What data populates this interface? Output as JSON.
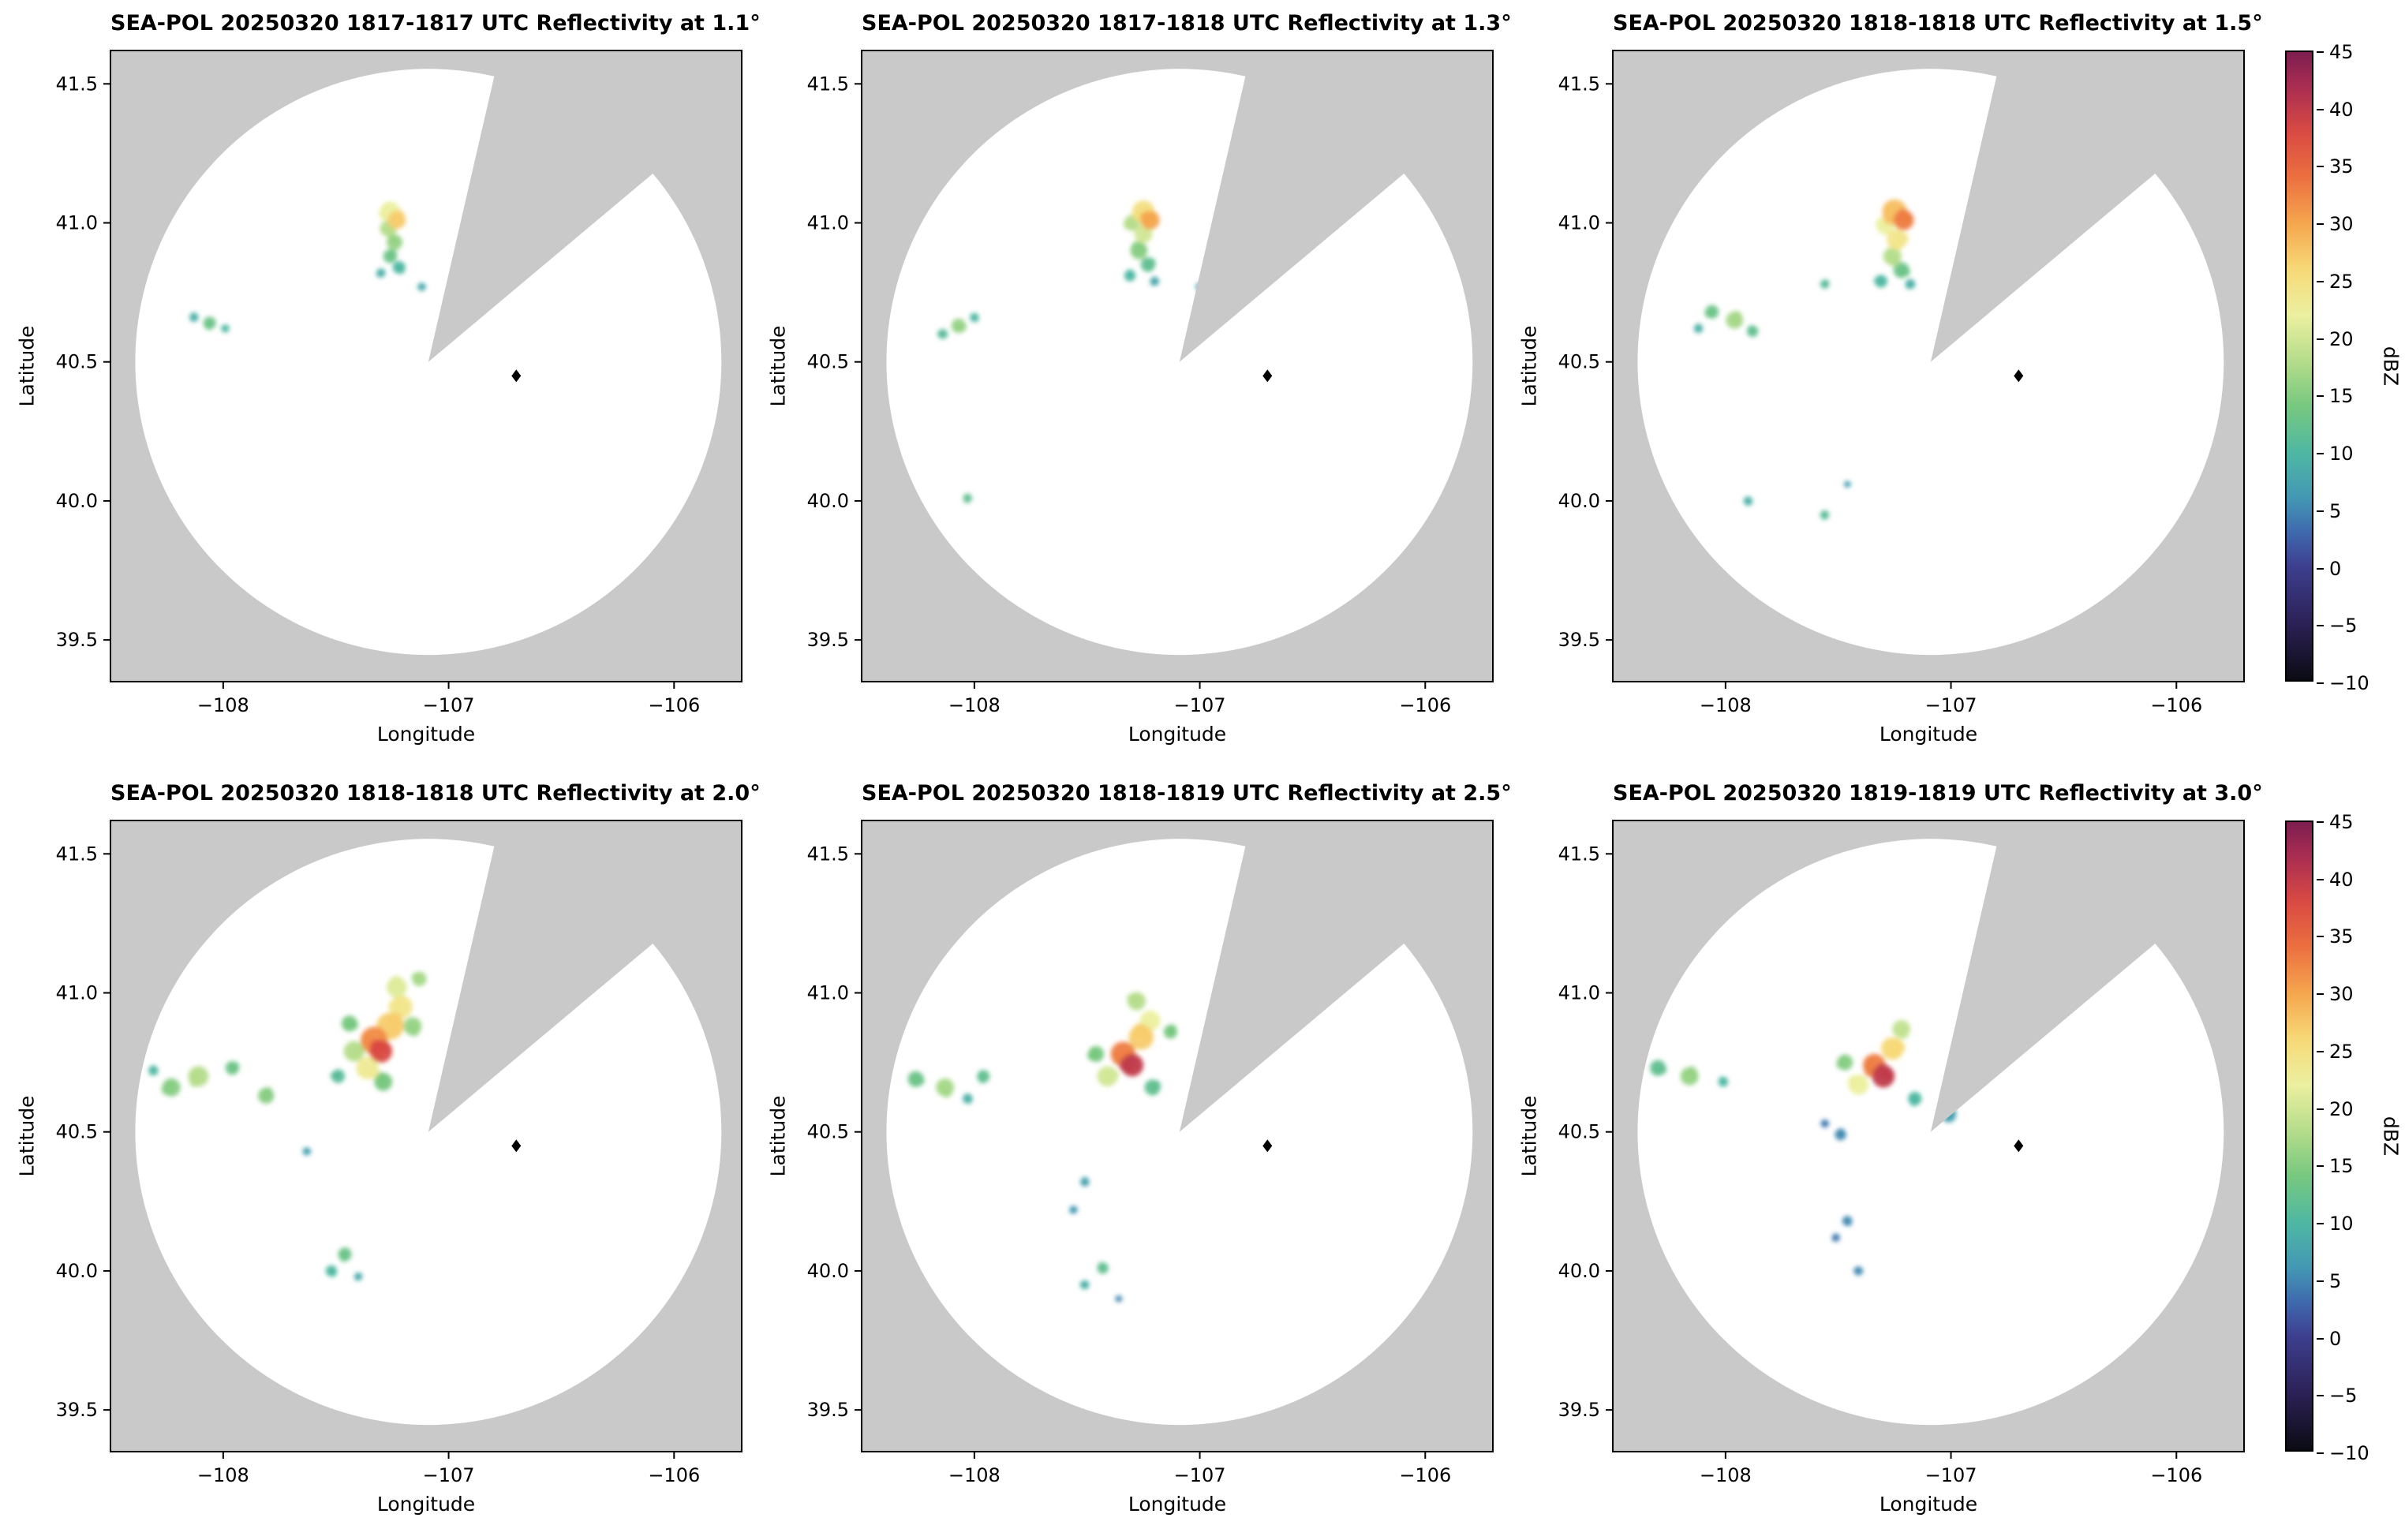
{
  "figure": {
    "map_background": "#c9c9c9",
    "coverage_color": "#ffffff",
    "frame_color": "#000000",
    "marker_color": "#000000"
  },
  "axes": {
    "xlabel": "Longitude",
    "ylabel": "Latitude",
    "xlim": [
      -108.5,
      -105.7
    ],
    "ylim": [
      39.35,
      41.62
    ],
    "xticks": [
      -108,
      -107,
      -106
    ],
    "xtick_labels": [
      "−108",
      "−107",
      "−106"
    ],
    "yticks": [
      41.5,
      41.0,
      40.5,
      40.0,
      39.5
    ],
    "ytick_labels": [
      "41.5",
      "41.0",
      "40.5",
      "40.0",
      "39.5"
    ]
  },
  "colorbar": {
    "label": "dBZ",
    "min": -10,
    "max": 45,
    "ticks": [
      45,
      40,
      35,
      30,
      25,
      20,
      15,
      10,
      5,
      0,
      -5,
      -10
    ],
    "tick_labels": [
      "45",
      "40",
      "35",
      "30",
      "25",
      "20",
      "15",
      "10",
      "5",
      "0",
      "−5",
      "−10"
    ],
    "stops": [
      [
        -10,
        "#0b0b14"
      ],
      [
        -5,
        "#2c2156"
      ],
      [
        0,
        "#3d3f8f"
      ],
      [
        3,
        "#3f6aae"
      ],
      [
        6,
        "#4398b4"
      ],
      [
        10,
        "#4fb8a2"
      ],
      [
        14,
        "#77c87f"
      ],
      [
        18,
        "#b5dd8b"
      ],
      [
        22,
        "#ecf0a0"
      ],
      [
        26,
        "#f7d977"
      ],
      [
        30,
        "#f5a64e"
      ],
      [
        34,
        "#ec7040"
      ],
      [
        38,
        "#d94a43"
      ],
      [
        42,
        "#a92d52"
      ],
      [
        45,
        "#7c1e50"
      ]
    ]
  },
  "radar": {
    "center_lonlat": [
      -107.09,
      40.5
    ],
    "range_deg": 1.3,
    "blocked_sector_azimuth_deg": [
      13,
      50
    ],
    "site_marker_lonlat": [
      -106.7,
      40.45
    ]
  },
  "chart_data": [
    {
      "type": "heatmap",
      "title": "SEA-POL 20250320 1817-1817 UTC Reflectivity at 1.1°",
      "date": "20250320",
      "time_utc": "1817-1817",
      "elevation_deg": 1.1,
      "xlabel": "Longitude",
      "ylabel": "Latitude",
      "value_units": "dBZ",
      "value_range": [
        -10,
        45
      ],
      "echoes": [
        [
          -107.26,
          41.04,
          22,
          0.045
        ],
        [
          -107.23,
          41.01,
          27,
          0.04
        ],
        [
          -107.27,
          40.98,
          18,
          0.035
        ],
        [
          -107.24,
          40.93,
          16,
          0.035
        ],
        [
          -107.26,
          40.88,
          13,
          0.03
        ],
        [
          -107.22,
          40.84,
          10,
          0.028
        ],
        [
          -107.3,
          40.82,
          9,
          0.02
        ],
        [
          -107.12,
          40.77,
          8,
          0.018
        ],
        [
          -108.06,
          40.64,
          13,
          0.028
        ],
        [
          -108.13,
          40.66,
          9,
          0.02
        ],
        [
          -107.99,
          40.62,
          10,
          0.018
        ]
      ]
    },
    {
      "type": "heatmap",
      "title": "SEA-POL 20250320 1817-1818 UTC Reflectivity at 1.3°",
      "date": "20250320",
      "time_utc": "1817-1818",
      "elevation_deg": 1.3,
      "xlabel": "Longitude",
      "ylabel": "Latitude",
      "value_units": "dBZ",
      "value_range": [
        -10,
        45
      ],
      "echoes": [
        [
          -107.25,
          41.04,
          25,
          0.05
        ],
        [
          -107.22,
          41.01,
          30,
          0.042
        ],
        [
          -107.3,
          41.0,
          18,
          0.035
        ],
        [
          -107.25,
          40.96,
          20,
          0.04
        ],
        [
          -107.27,
          40.9,
          15,
          0.038
        ],
        [
          -107.23,
          40.85,
          12,
          0.032
        ],
        [
          -107.31,
          40.81,
          10,
          0.025
        ],
        [
          -107.2,
          40.79,
          8,
          0.02
        ],
        [
          -107.0,
          40.77,
          7,
          0.018
        ],
        [
          -108.07,
          40.63,
          16,
          0.032
        ],
        [
          -108.14,
          40.6,
          11,
          0.022
        ],
        [
          -108.0,
          40.66,
          10,
          0.02
        ],
        [
          -108.03,
          40.01,
          12,
          0.02
        ]
      ]
    },
    {
      "type": "heatmap",
      "title": "SEA-POL 20250320 1818-1818 UTC Reflectivity at 1.5°",
      "date": "20250320",
      "time_utc": "1818-1818",
      "elevation_deg": 1.5,
      "xlabel": "Longitude",
      "ylabel": "Latitude",
      "value_units": "dBZ",
      "value_range": [
        -10,
        45
      ],
      "echoes": [
        [
          -107.25,
          41.04,
          28,
          0.055
        ],
        [
          -107.21,
          41.01,
          33,
          0.045
        ],
        [
          -107.29,
          40.99,
          22,
          0.04
        ],
        [
          -107.24,
          40.94,
          24,
          0.045
        ],
        [
          -107.26,
          40.88,
          18,
          0.04
        ],
        [
          -107.22,
          40.83,
          13,
          0.035
        ],
        [
          -107.31,
          40.79,
          10,
          0.028
        ],
        [
          -107.18,
          40.78,
          9,
          0.022
        ],
        [
          -107.56,
          40.78,
          11,
          0.02
        ],
        [
          -107.96,
          40.65,
          17,
          0.038
        ],
        [
          -108.06,
          40.68,
          13,
          0.03
        ],
        [
          -107.88,
          40.61,
          12,
          0.025
        ],
        [
          -108.12,
          40.62,
          9,
          0.02
        ],
        [
          -107.9,
          40.0,
          9,
          0.02
        ],
        [
          -107.56,
          39.95,
          11,
          0.02
        ],
        [
          -107.46,
          40.06,
          7,
          0.015
        ]
      ]
    },
    {
      "type": "heatmap",
      "title": "SEA-POL 20250320 1818-1818 UTC Reflectivity at 2.0°",
      "date": "20250320",
      "time_utc": "1818-1818",
      "elevation_deg": 2.0,
      "xlabel": "Longitude",
      "ylabel": "Latitude",
      "value_units": "dBZ",
      "value_range": [
        -10,
        45
      ],
      "echoes": [
        [
          -107.3,
          40.79,
          38,
          0.05
        ],
        [
          -107.33,
          40.83,
          32,
          0.06
        ],
        [
          -107.26,
          40.88,
          27,
          0.06
        ],
        [
          -107.21,
          40.95,
          24,
          0.05
        ],
        [
          -107.23,
          41.02,
          21,
          0.045
        ],
        [
          -107.13,
          41.05,
          17,
          0.032
        ],
        [
          -107.36,
          40.73,
          23,
          0.05
        ],
        [
          -107.42,
          40.79,
          18,
          0.045
        ],
        [
          -107.29,
          40.68,
          14,
          0.04
        ],
        [
          -107.16,
          40.88,
          16,
          0.04
        ],
        [
          -107.44,
          40.89,
          14,
          0.035
        ],
        [
          -107.49,
          40.7,
          11,
          0.03
        ],
        [
          -108.11,
          40.7,
          18,
          0.045
        ],
        [
          -108.23,
          40.66,
          15,
          0.04
        ],
        [
          -107.96,
          40.73,
          13,
          0.03
        ],
        [
          -107.81,
          40.63,
          15,
          0.035
        ],
        [
          -108.31,
          40.72,
          10,
          0.022
        ],
        [
          -107.63,
          40.43,
          7,
          0.018
        ],
        [
          -107.46,
          40.06,
          13,
          0.03
        ],
        [
          -107.52,
          40.0,
          10,
          0.025
        ],
        [
          -107.4,
          39.98,
          8,
          0.018
        ]
      ]
    },
    {
      "type": "heatmap",
      "title": "SEA-POL 20250320 1818-1819 UTC Reflectivity at 2.5°",
      "date": "20250320",
      "time_utc": "1818-1819",
      "elevation_deg": 2.5,
      "xlabel": "Longitude",
      "ylabel": "Latitude",
      "value_units": "dBZ",
      "value_range": [
        -10,
        45
      ],
      "echoes": [
        [
          -107.3,
          40.74,
          40,
          0.05
        ],
        [
          -107.34,
          40.78,
          33,
          0.055
        ],
        [
          -107.26,
          40.84,
          27,
          0.055
        ],
        [
          -107.22,
          40.9,
          22,
          0.045
        ],
        [
          -107.28,
          40.97,
          18,
          0.04
        ],
        [
          -107.41,
          40.7,
          20,
          0.045
        ],
        [
          -107.46,
          40.78,
          14,
          0.035
        ],
        [
          -107.21,
          40.66,
          12,
          0.035
        ],
        [
          -107.13,
          40.86,
          14,
          0.03
        ],
        [
          -108.13,
          40.66,
          17,
          0.04
        ],
        [
          -108.26,
          40.69,
          13,
          0.035
        ],
        [
          -107.96,
          40.7,
          12,
          0.028
        ],
        [
          -108.03,
          40.62,
          9,
          0.022
        ],
        [
          -107.51,
          40.32,
          7,
          0.02
        ],
        [
          -107.56,
          40.22,
          6,
          0.018
        ],
        [
          -107.43,
          40.01,
          12,
          0.025
        ],
        [
          -107.51,
          39.95,
          9,
          0.02
        ],
        [
          -107.36,
          39.9,
          5,
          0.015
        ]
      ]
    },
    {
      "type": "heatmap",
      "title": "SEA-POL 20250320 1819-1819 UTC Reflectivity at 3.0°",
      "date": "20250320",
      "time_utc": "1819-1819",
      "elevation_deg": 3.0,
      "xlabel": "Longitude",
      "ylabel": "Latitude",
      "value_units": "dBZ",
      "value_range": [
        -10,
        45
      ],
      "echoes": [
        [
          -107.3,
          40.7,
          40,
          0.05
        ],
        [
          -107.34,
          40.74,
          33,
          0.05
        ],
        [
          -107.26,
          40.8,
          26,
          0.05
        ],
        [
          -107.22,
          40.87,
          19,
          0.04
        ],
        [
          -107.41,
          40.67,
          22,
          0.045
        ],
        [
          -107.47,
          40.75,
          15,
          0.035
        ],
        [
          -107.16,
          40.62,
          10,
          0.03
        ],
        [
          -107.01,
          40.56,
          7,
          0.032
        ],
        [
          -107.49,
          40.49,
          5,
          0.025
        ],
        [
          -107.56,
          40.53,
          4,
          0.018
        ],
        [
          -108.16,
          40.7,
          16,
          0.04
        ],
        [
          -108.3,
          40.73,
          12,
          0.035
        ],
        [
          -108.01,
          40.68,
          10,
          0.022
        ],
        [
          -107.46,
          40.18,
          5,
          0.022
        ],
        [
          -107.51,
          40.12,
          4,
          0.018
        ],
        [
          -107.41,
          40.0,
          5,
          0.02
        ]
      ]
    }
  ]
}
